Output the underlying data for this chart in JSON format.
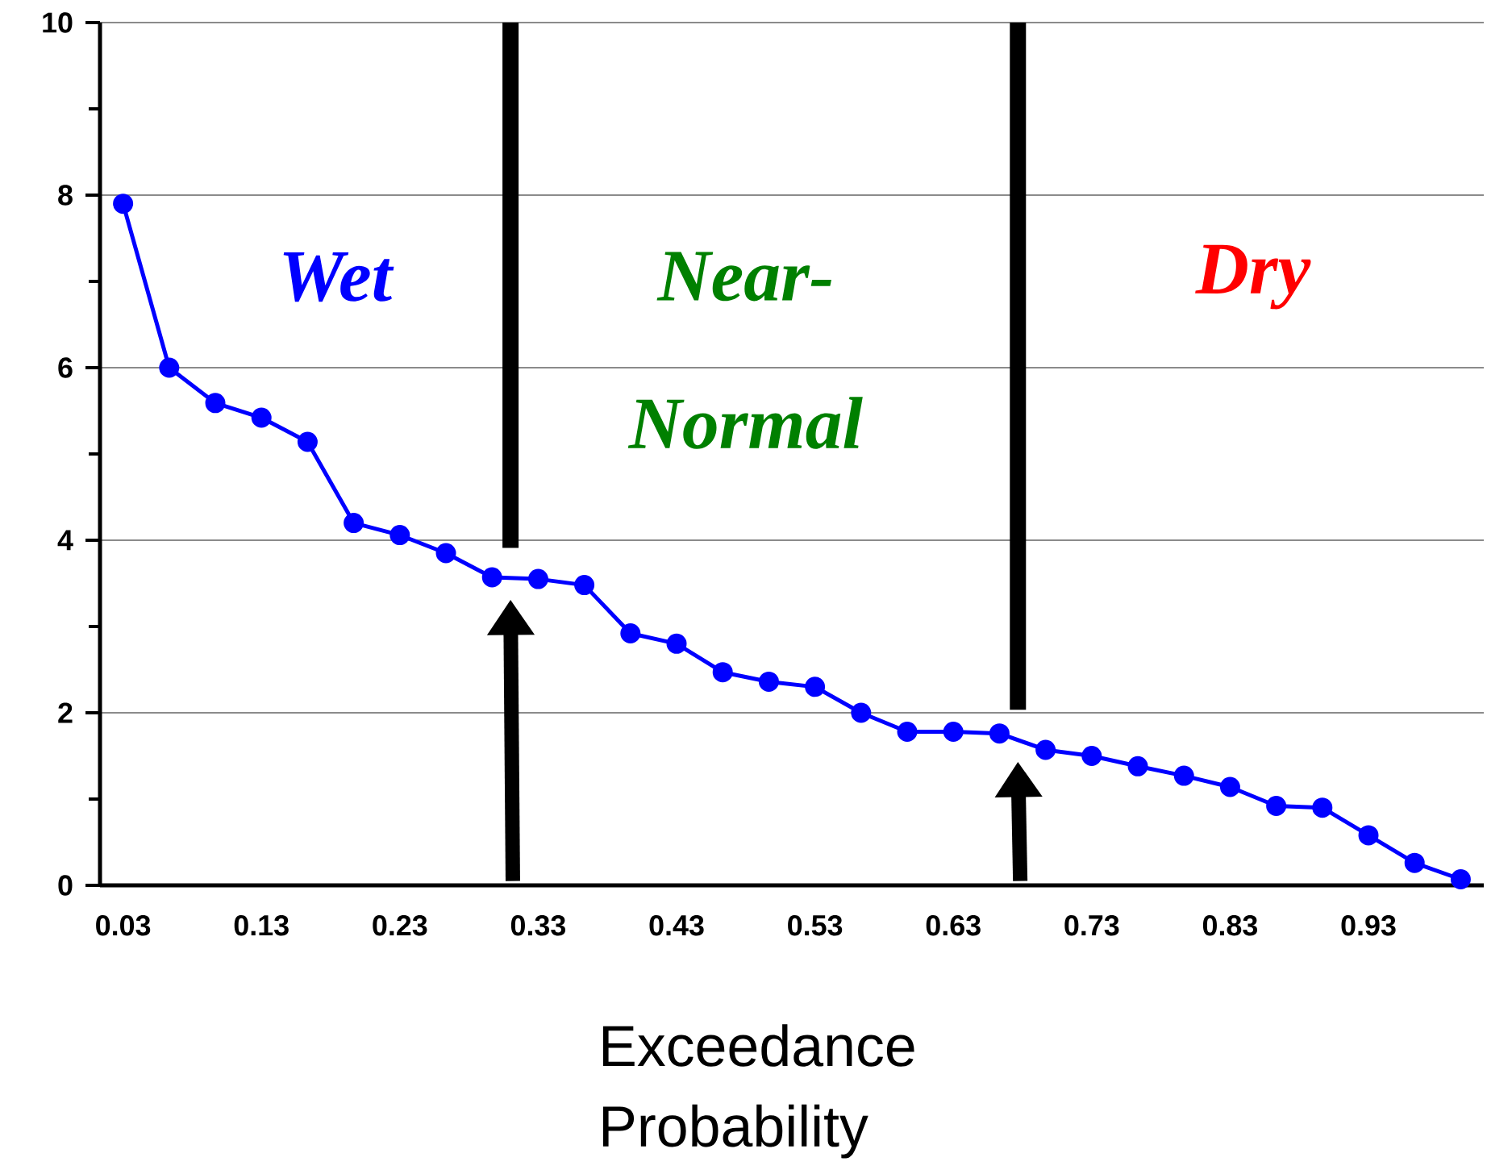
{
  "chart_data": {
    "type": "line",
    "xlabel": "Exceedance Probability",
    "categories": [
      "0.03",
      null,
      null,
      "0.13",
      null,
      null,
      "0.23",
      null,
      null,
      "0.33",
      null,
      null,
      "0.43",
      null,
      null,
      "0.53",
      null,
      null,
      "0.63",
      null,
      null,
      "0.73",
      null,
      null,
      "0.83",
      null,
      null,
      "0.93",
      null,
      null
    ],
    "series": [
      {
        "color": "#0000ff",
        "values": [
          7.9,
          6.0,
          5.59,
          5.42,
          5.14,
          4.2,
          4.06,
          3.85,
          3.57,
          3.55,
          3.48,
          2.92,
          2.8,
          2.47,
          2.36,
          2.3,
          2.0,
          1.78,
          1.78,
          1.76,
          1.57,
          1.5,
          1.38,
          1.27,
          1.14,
          0.92,
          0.9,
          0.58,
          0.26,
          0.07
        ]
      }
    ],
    "ylim": [
      0,
      10
    ],
    "yticks": [
      0,
      2,
      4,
      6,
      8,
      10
    ],
    "grid": "y",
    "marker": "circle",
    "line_style": "solid",
    "annotations": [
      "Wet",
      "Near-Normal",
      "Dry"
    ]
  }
}
